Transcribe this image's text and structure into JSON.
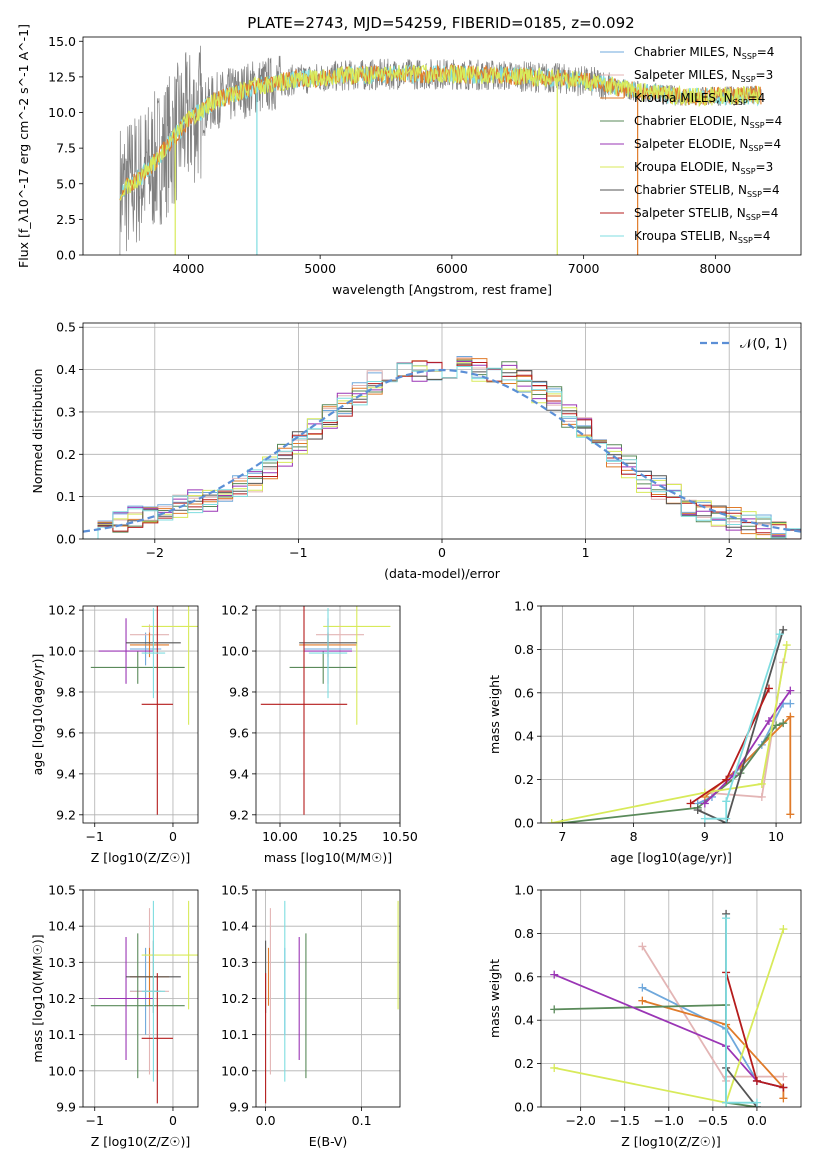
{
  "figure": {
    "title": "PLATE=2743, MJD=54259, FIBERID=0185, z=0.092",
    "series": [
      {
        "name": "Chabrier MILES",
        "nssp": "4",
        "color": "#6fa8dc"
      },
      {
        "name": "Salpeter MILES",
        "nssp": "3",
        "color": "#e3b5b5"
      },
      {
        "name": "Kroupa MILES",
        "nssp": "4",
        "color": "#e07b2a"
      },
      {
        "name": "Chabrier ELODIE",
        "nssp": "4",
        "color": "#5a8a5a"
      },
      {
        "name": "Salpeter ELODIE",
        "nssp": "4",
        "color": "#9a35b5"
      },
      {
        "name": "Kroupa ELODIE",
        "nssp": "3",
        "color": "#d8ea5a"
      },
      {
        "name": "Chabrier STELIB",
        "nssp": "4",
        "color": "#555555"
      },
      {
        "name": "Salpeter STELIB",
        "nssp": "4",
        "color": "#b51c1c"
      },
      {
        "name": "Kroupa STELIB",
        "nssp": "4",
        "color": "#7fdde0"
      }
    ]
  },
  "chart_data": [
    {
      "id": "spectrum",
      "type": "line",
      "xlabel": "wavelength [Angstrom, rest frame]",
      "ylabel": "Flux [f_λ10^-17 erg cm^-2 s^-1 A^-1]",
      "xlim": [
        3200,
        8650
      ],
      "ylim": [
        0,
        15.3
      ],
      "xticks": [
        4000,
        5000,
        6000,
        7000,
        8000
      ],
      "yticks": [
        "0.0",
        "2.5",
        "5.0",
        "7.5",
        "10.0",
        "12.5",
        "15.0"
      ],
      "data_color": "#808080",
      "model_colors": [
        "#7fdde0",
        "#e07b2a",
        "#d8ea5a"
      ],
      "continuum_x": [
        3500,
        3700,
        3850,
        4000,
        4200,
        4500,
        4800,
        5200,
        5600,
        6000,
        6400,
        6800,
        7100,
        7400,
        7800,
        8300
      ],
      "continuum_y": [
        4.5,
        6.0,
        7.8,
        9.5,
        10.8,
        11.8,
        12.3,
        12.6,
        12.7,
        12.7,
        12.6,
        12.4,
        12.1,
        11.5,
        11.1,
        11.2
      ],
      "drop_lines": [
        {
          "x": 3900,
          "color": "#d8ea5a"
        },
        {
          "x": 4520,
          "color": "#7fdde0"
        },
        {
          "x": 6800,
          "color": "#d8ea5a"
        },
        {
          "x": 7410,
          "color": "#e07b2a"
        }
      ]
    },
    {
      "id": "residuals",
      "type": "line",
      "xlabel": "(data-model)/error",
      "ylabel": "Normed distribution",
      "xlim": [
        -2.5,
        2.5
      ],
      "ylim": [
        0,
        0.51
      ],
      "xticks": [
        "−2",
        "−1",
        "0",
        "1",
        "2"
      ],
      "yticks": [
        "0.0",
        "0.1",
        "0.2",
        "0.3",
        "0.4",
        "0.5"
      ],
      "legend": "𝒩(0, 1)",
      "normal_color": "#5b8fd6",
      "hist_values": [
        0.02,
        0.03,
        0.04,
        0.05,
        0.05,
        0.06,
        0.08,
        0.09,
        0.09,
        0.11,
        0.12,
        0.14,
        0.17,
        0.2,
        0.23,
        0.26,
        0.29,
        0.32,
        0.34,
        0.37,
        0.38,
        0.39,
        0.4,
        0.4,
        0.41,
        0.41,
        0.4,
        0.4,
        0.39,
        0.37,
        0.35,
        0.33,
        0.29,
        0.26,
        0.23,
        0.2,
        0.17,
        0.14,
        0.12,
        0.1,
        0.08,
        0.07,
        0.05,
        0.05,
        0.04,
        0.03,
        0.03,
        0.02
      ]
    },
    {
      "id": "age-vs-Z",
      "type": "scatter",
      "xlabel": "Z [log10(Z/Z☉)]",
      "ylabel": "age [log10(age/yr)]",
      "xlim": [
        -1.15,
        0.32
      ],
      "ylim": [
        9.16,
        10.22
      ],
      "xticks": [
        "−1",
        "0"
      ],
      "yticks": [
        "9.2",
        "9.4",
        "9.6",
        "9.8",
        "10.0",
        "10.2"
      ],
      "points": [
        {
          "x": -0.35,
          "y": 10.01,
          "xerr": 0.2,
          "yerr": 0.08
        },
        {
          "x": -0.3,
          "y": 10.08,
          "xerr": 0.25,
          "yerr": 0.05
        },
        {
          "x": -0.3,
          "y": 10.03,
          "xerr": 0.25,
          "yerr": 0.06
        },
        {
          "x": -0.45,
          "y": 9.92,
          "xerr": 0.6,
          "yerr": 0.08
        },
        {
          "x": -0.6,
          "y": 10.0,
          "xerr": 0.35,
          "yerr": 0.16
        },
        {
          "x": 0.2,
          "y": 10.12,
          "xerr": 0.6,
          "yerr": 0.48
        },
        {
          "x": -0.25,
          "y": 10.04,
          "xerr": 0.35,
          "yerr": 0.04
        },
        {
          "x": -0.2,
          "y": 9.74,
          "xerr": 0.2,
          "yerr": 0.54
        },
        {
          "x": -0.25,
          "y": 9.99,
          "xerr": 0.15,
          "yerr": 0.22
        }
      ]
    },
    {
      "id": "age-vs-mass",
      "type": "scatter",
      "xlabel": "mass [log10(M/M☉)]",
      "ylabel": "",
      "xlim": [
        9.9,
        10.5
      ],
      "ylim": [
        9.16,
        10.22
      ],
      "xticks": [
        "10.00",
        "10.25",
        "10.50"
      ],
      "yticks": [
        "9.2",
        "9.4",
        "9.6",
        "9.8",
        "10.0",
        "10.2"
      ],
      "points": [
        {
          "x": 10.2,
          "y": 10.01,
          "xerr": 0.1,
          "yerr": 0.08
        },
        {
          "x": 10.25,
          "y": 10.08,
          "xerr": 0.1,
          "yerr": 0.05
        },
        {
          "x": 10.2,
          "y": 10.03,
          "xerr": 0.12,
          "yerr": 0.06
        },
        {
          "x": 10.18,
          "y": 9.92,
          "xerr": 0.14,
          "yerr": 0.08
        },
        {
          "x": 10.2,
          "y": 10.0,
          "xerr": 0.1,
          "yerr": 0.16
        },
        {
          "x": 10.32,
          "y": 10.12,
          "xerr": 0.14,
          "yerr": 0.48
        },
        {
          "x": 10.2,
          "y": 10.04,
          "xerr": 0.12,
          "yerr": 0.04
        },
        {
          "x": 10.1,
          "y": 9.74,
          "xerr": 0.18,
          "yerr": 0.54
        },
        {
          "x": 10.2,
          "y": 9.99,
          "xerr": 0.08,
          "yerr": 0.22
        }
      ]
    },
    {
      "id": "massweight-vs-age",
      "type": "line",
      "xlabel": "age [log10(age/yr)]",
      "ylabel": "mass weight",
      "xlim": [
        6.7,
        10.35
      ],
      "ylim": [
        0,
        1.0
      ],
      "xticks": [
        "7",
        "8",
        "9",
        "10"
      ],
      "yticks": [
        "0.0",
        "0.2",
        "0.4",
        "0.6",
        "0.8",
        "1.0"
      ],
      "series": [
        {
          "x": [
            8.9,
            9.1,
            9.8,
            10.1,
            10.2
          ],
          "y": [
            0.09,
            0.12,
            0.36,
            0.55,
            0.55
          ]
        },
        {
          "x": [
            9.0,
            9.8,
            10.1
          ],
          "y": [
            0.14,
            0.12,
            0.74
          ]
        },
        {
          "x": [
            9.0,
            9.5,
            10.2,
            10.2
          ],
          "y": [
            0.12,
            0.26,
            0.49,
            0.04
          ]
        },
        {
          "x": [
            7.0,
            8.9,
            9.5,
            10.0,
            10.1
          ],
          "y": [
            0.0,
            0.07,
            0.23,
            0.45,
            0.46
          ]
        },
        {
          "x": [
            9.0,
            9.4,
            9.9,
            10.2
          ],
          "y": [
            0.09,
            0.22,
            0.47,
            0.61
          ]
        },
        {
          "x": [
            6.85,
            9.0,
            9.8,
            10.15
          ],
          "y": [
            0.0,
            0.14,
            0.18,
            0.82
          ]
        },
        {
          "x": [
            8.9,
            9.3,
            10.1
          ],
          "y": [
            0.06,
            0.0,
            0.89
          ]
        },
        {
          "x": [
            8.8,
            9.3,
            9.9
          ],
          "y": [
            0.09,
            0.2,
            0.62
          ]
        },
        {
          "x": [
            9.0,
            9.3,
            9.3,
            10.05
          ],
          "y": [
            0.02,
            0.02,
            0.1,
            0.87
          ]
        }
      ]
    },
    {
      "id": "mass-vs-Z",
      "type": "scatter",
      "xlabel": "Z [log10(Z/Z☉)]",
      "ylabel": "mass [log10(M/M☉)]",
      "xlim": [
        -1.15,
        0.32
      ],
      "ylim": [
        9.9,
        10.5
      ],
      "xticks": [
        "−1",
        "0"
      ],
      "yticks": [
        "9.9",
        "10.0",
        "10.1",
        "10.2",
        "10.3",
        "10.4",
        "10.5"
      ],
      "points": [
        {
          "x": -0.35,
          "y": 10.22,
          "xerr": 0.2,
          "yerr": 0.12
        },
        {
          "x": -0.3,
          "y": 10.22,
          "xerr": 0.25,
          "yerr": 0.23
        },
        {
          "x": -0.3,
          "y": 10.26,
          "xerr": 0.25,
          "yerr": 0.08
        },
        {
          "x": -0.45,
          "y": 10.18,
          "xerr": 0.6,
          "yerr": 0.2
        },
        {
          "x": -0.6,
          "y": 10.2,
          "xerr": 0.35,
          "yerr": 0.17
        },
        {
          "x": 0.2,
          "y": 10.32,
          "xerr": 0.6,
          "yerr": 0.15
        },
        {
          "x": -0.25,
          "y": 10.26,
          "xerr": 0.35,
          "yerr": 0.1
        },
        {
          "x": -0.2,
          "y": 10.09,
          "xerr": 0.2,
          "yerr": 0.18
        },
        {
          "x": -0.25,
          "y": 10.22,
          "xerr": 0.15,
          "yerr": 0.25
        }
      ]
    },
    {
      "id": "mass-vs-ebv",
      "type": "scatter",
      "xlabel": "E(B-V)",
      "ylabel": "",
      "xlim": [
        -0.01,
        0.14
      ],
      "ylim": [
        9.9,
        10.5
      ],
      "xticks": [
        "0.0",
        "0.1"
      ],
      "yticks": [
        "9.9",
        "10.0",
        "10.1",
        "10.2",
        "10.3",
        "10.4",
        "10.5"
      ],
      "points": [
        {
          "x": 0.02,
          "y": 10.22,
          "yerr": 0.12
        },
        {
          "x": 0.005,
          "y": 10.22,
          "yerr": 0.23
        },
        {
          "x": 0.003,
          "y": 10.26,
          "yerr": 0.08
        },
        {
          "x": 0.042,
          "y": 10.18,
          "yerr": 0.2
        },
        {
          "x": 0.035,
          "y": 10.2,
          "yerr": 0.17
        },
        {
          "x": 0.138,
          "y": 10.32,
          "yerr": 0.15
        },
        {
          "x": 0.0,
          "y": 10.26,
          "yerr": 0.1
        },
        {
          "x": 0.0,
          "y": 10.09,
          "yerr": 0.18
        },
        {
          "x": 0.02,
          "y": 10.22,
          "yerr": 0.25
        }
      ]
    },
    {
      "id": "massweight-vs-Z",
      "type": "line",
      "xlabel": "Z [log10(Z/Z☉)]",
      "ylabel": "mass weight",
      "xlim": [
        -2.45,
        0.5
      ],
      "ylim": [
        0,
        1.0
      ],
      "xticks": [
        "−2.0",
        "−1.5",
        "−1.0",
        "−0.5",
        "0.0"
      ],
      "yticks": [
        "0.0",
        "0.2",
        "0.4",
        "0.6",
        "0.8",
        "1.0"
      ],
      "series": [
        {
          "x": [
            -1.3,
            -0.35,
            0.0,
            0.3
          ],
          "y": [
            0.55,
            0.36,
            0.12,
            0.09
          ]
        },
        {
          "x": [
            -1.3,
            -0.35,
            -0.35,
            0.3
          ],
          "y": [
            0.74,
            0.12,
            0.14,
            0.14
          ]
        },
        {
          "x": [
            -1.3,
            -0.35,
            0.3,
            0.3
          ],
          "y": [
            0.49,
            0.38,
            0.09,
            0.04
          ]
        },
        {
          "x": [
            -2.3,
            -0.35,
            -0.35,
            0.0
          ],
          "y": [
            0.45,
            0.47,
            0.02,
            0.0
          ]
        },
        {
          "x": [
            -2.3,
            -0.35,
            0.0,
            0.3
          ],
          "y": [
            0.61,
            0.28,
            0.12,
            0.09
          ]
        },
        {
          "x": [
            -2.3,
            -0.35,
            0.3
          ],
          "y": [
            0.18,
            0.02,
            0.82
          ]
        },
        {
          "x": [
            -0.35,
            -0.35,
            0.0
          ],
          "y": [
            0.89,
            0.18,
            0.0
          ]
        },
        {
          "x": [
            -0.35,
            0.0,
            0.3
          ],
          "y": [
            0.62,
            0.12,
            0.09
          ]
        },
        {
          "x": [
            -0.35,
            -0.35,
            0.0
          ],
          "y": [
            0.87,
            0.02,
            0.02
          ]
        }
      ]
    }
  ]
}
